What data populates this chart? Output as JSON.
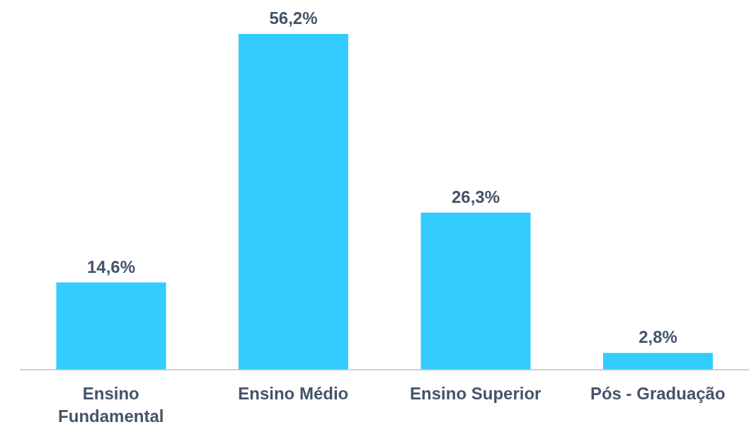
{
  "chart_data": {
    "type": "bar",
    "categories": [
      "Ensino Fundamental",
      "Ensino Médio",
      "Ensino Superior",
      "Pós - Graduação"
    ],
    "values": [
      14.6,
      56.2,
      26.3,
      2.8
    ],
    "color": "#33ccff",
    "value_labels": [
      "14,6%",
      "56,2%",
      "26,3%",
      "2,8%"
    ]
  }
}
